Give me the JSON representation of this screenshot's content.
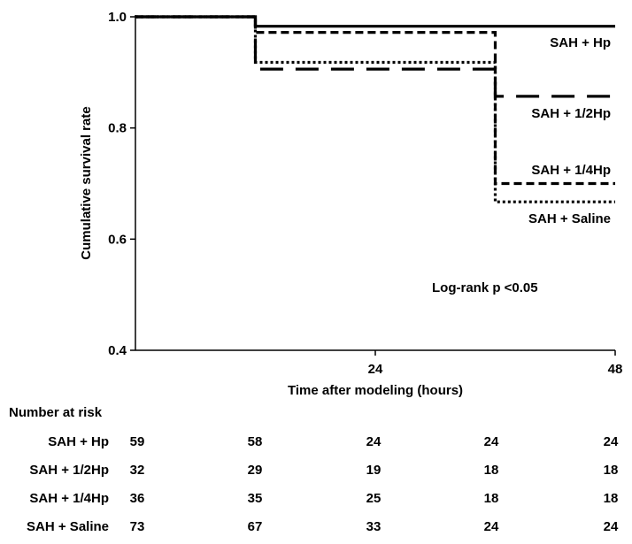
{
  "chart_data": {
    "type": "line",
    "step": true,
    "xlabel": "Time after modeling (hours)",
    "ylabel": "Cumulative survival rate",
    "xlim": [
      0,
      48
    ],
    "ylim": [
      0.4,
      1.0
    ],
    "x_ticks": [
      24,
      48
    ],
    "y_ticks": [
      "0.4",
      "0.6",
      "0.8",
      "1.0"
    ],
    "annotation": "Log-rank p <0.05",
    "series": [
      {
        "name": "SAH + Hp",
        "style": "solid",
        "x": [
          0,
          12,
          12,
          48
        ],
        "y": [
          1.0,
          1.0,
          0.983,
          0.983
        ]
      },
      {
        "name": "SAH + 1/2Hp",
        "style": "long-dash",
        "x": [
          0,
          12,
          12,
          36,
          36,
          48
        ],
        "y": [
          1.0,
          1.0,
          0.906,
          0.906,
          0.857,
          0.857
        ]
      },
      {
        "name": "SAH + 1/4Hp",
        "style": "dash",
        "x": [
          0,
          12,
          12,
          36,
          36,
          48
        ],
        "y": [
          1.0,
          1.0,
          0.972,
          0.972,
          0.7,
          0.7
        ]
      },
      {
        "name": "SAH + Saline",
        "style": "dot",
        "x": [
          0,
          12,
          12,
          36,
          36,
          48
        ],
        "y": [
          1.0,
          1.0,
          0.918,
          0.918,
          0.667,
          0.667
        ]
      }
    ],
    "number_at_risk": {
      "title": "Number at risk",
      "rows": [
        {
          "label": "SAH + Hp",
          "values": [
            "59",
            "58",
            "24",
            "24",
            "24"
          ]
        },
        {
          "label": "SAH + 1/2Hp",
          "values": [
            "32",
            "29",
            "19",
            "18",
            "18"
          ]
        },
        {
          "label": "SAH + 1/4Hp",
          "values": [
            "36",
            "35",
            "25",
            "18",
            "18"
          ]
        },
        {
          "label": "SAH + Saline",
          "values": [
            "73",
            "67",
            "33",
            "24",
            "24"
          ]
        }
      ]
    }
  }
}
